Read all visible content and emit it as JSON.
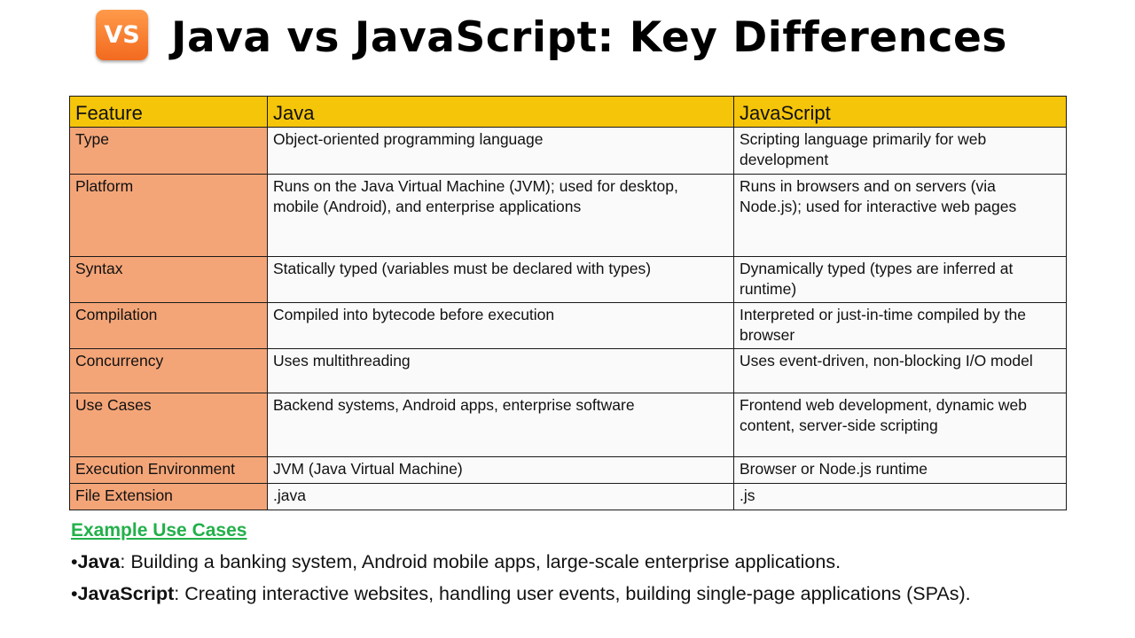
{
  "header": {
    "icon_text": "VS",
    "title": "Java vs JavaScript: Key Differences"
  },
  "table": {
    "columns": [
      "Feature",
      "Java",
      "JavaScript"
    ],
    "rows": [
      {
        "feature": "Type",
        "java": "Object-oriented programming language",
        "javascript": "Scripting language primarily for web development"
      },
      {
        "feature": "Platform",
        "java": "Runs on the Java Virtual Machine (JVM); used for desktop, mobile (Android), and enterprise applications",
        "javascript": "Runs in browsers and on servers (via Node.js); used for interactive web pages"
      },
      {
        "feature": "Syntax",
        "java": "Statically typed (variables must be declared with types)",
        "javascript": "Dynamically typed (types are inferred at runtime)"
      },
      {
        "feature": "Compilation",
        "java": "Compiled into bytecode before execution",
        "javascript": "Interpreted or just-in-time compiled by the browser"
      },
      {
        "feature": "Concurrency",
        "java": "Uses multithreading",
        "javascript": "Uses event-driven, non-blocking I/O model"
      },
      {
        "feature": "Use Cases",
        "java": "Backend systems, Android apps, enterprise software",
        "javascript": "Frontend web development, dynamic web content, server-side scripting"
      },
      {
        "feature": "Execution Environment",
        "java": "JVM (Java Virtual Machine)",
        "javascript": "Browser or Node.js runtime"
      },
      {
        "feature": "File Extension",
        "java": ".java",
        "javascript": ".js"
      }
    ]
  },
  "examples": {
    "heading": "Example Use Cases",
    "items": [
      {
        "bullet": "•",
        "label": "Java",
        "text": ": Building a banking system, Android mobile apps, large-scale enterprise applications."
      },
      {
        "bullet": "•",
        "label": "JavaScript",
        "text": ": Creating interactive websites, handling user events, building single-page applications (SPAs)."
      }
    ]
  },
  "colors": {
    "header_row": "#f5c50a",
    "feature_column": "#f4a578",
    "cell_background": "#fafafa",
    "heading_green": "#22b04a",
    "icon_orange": "#f26a1f"
  }
}
